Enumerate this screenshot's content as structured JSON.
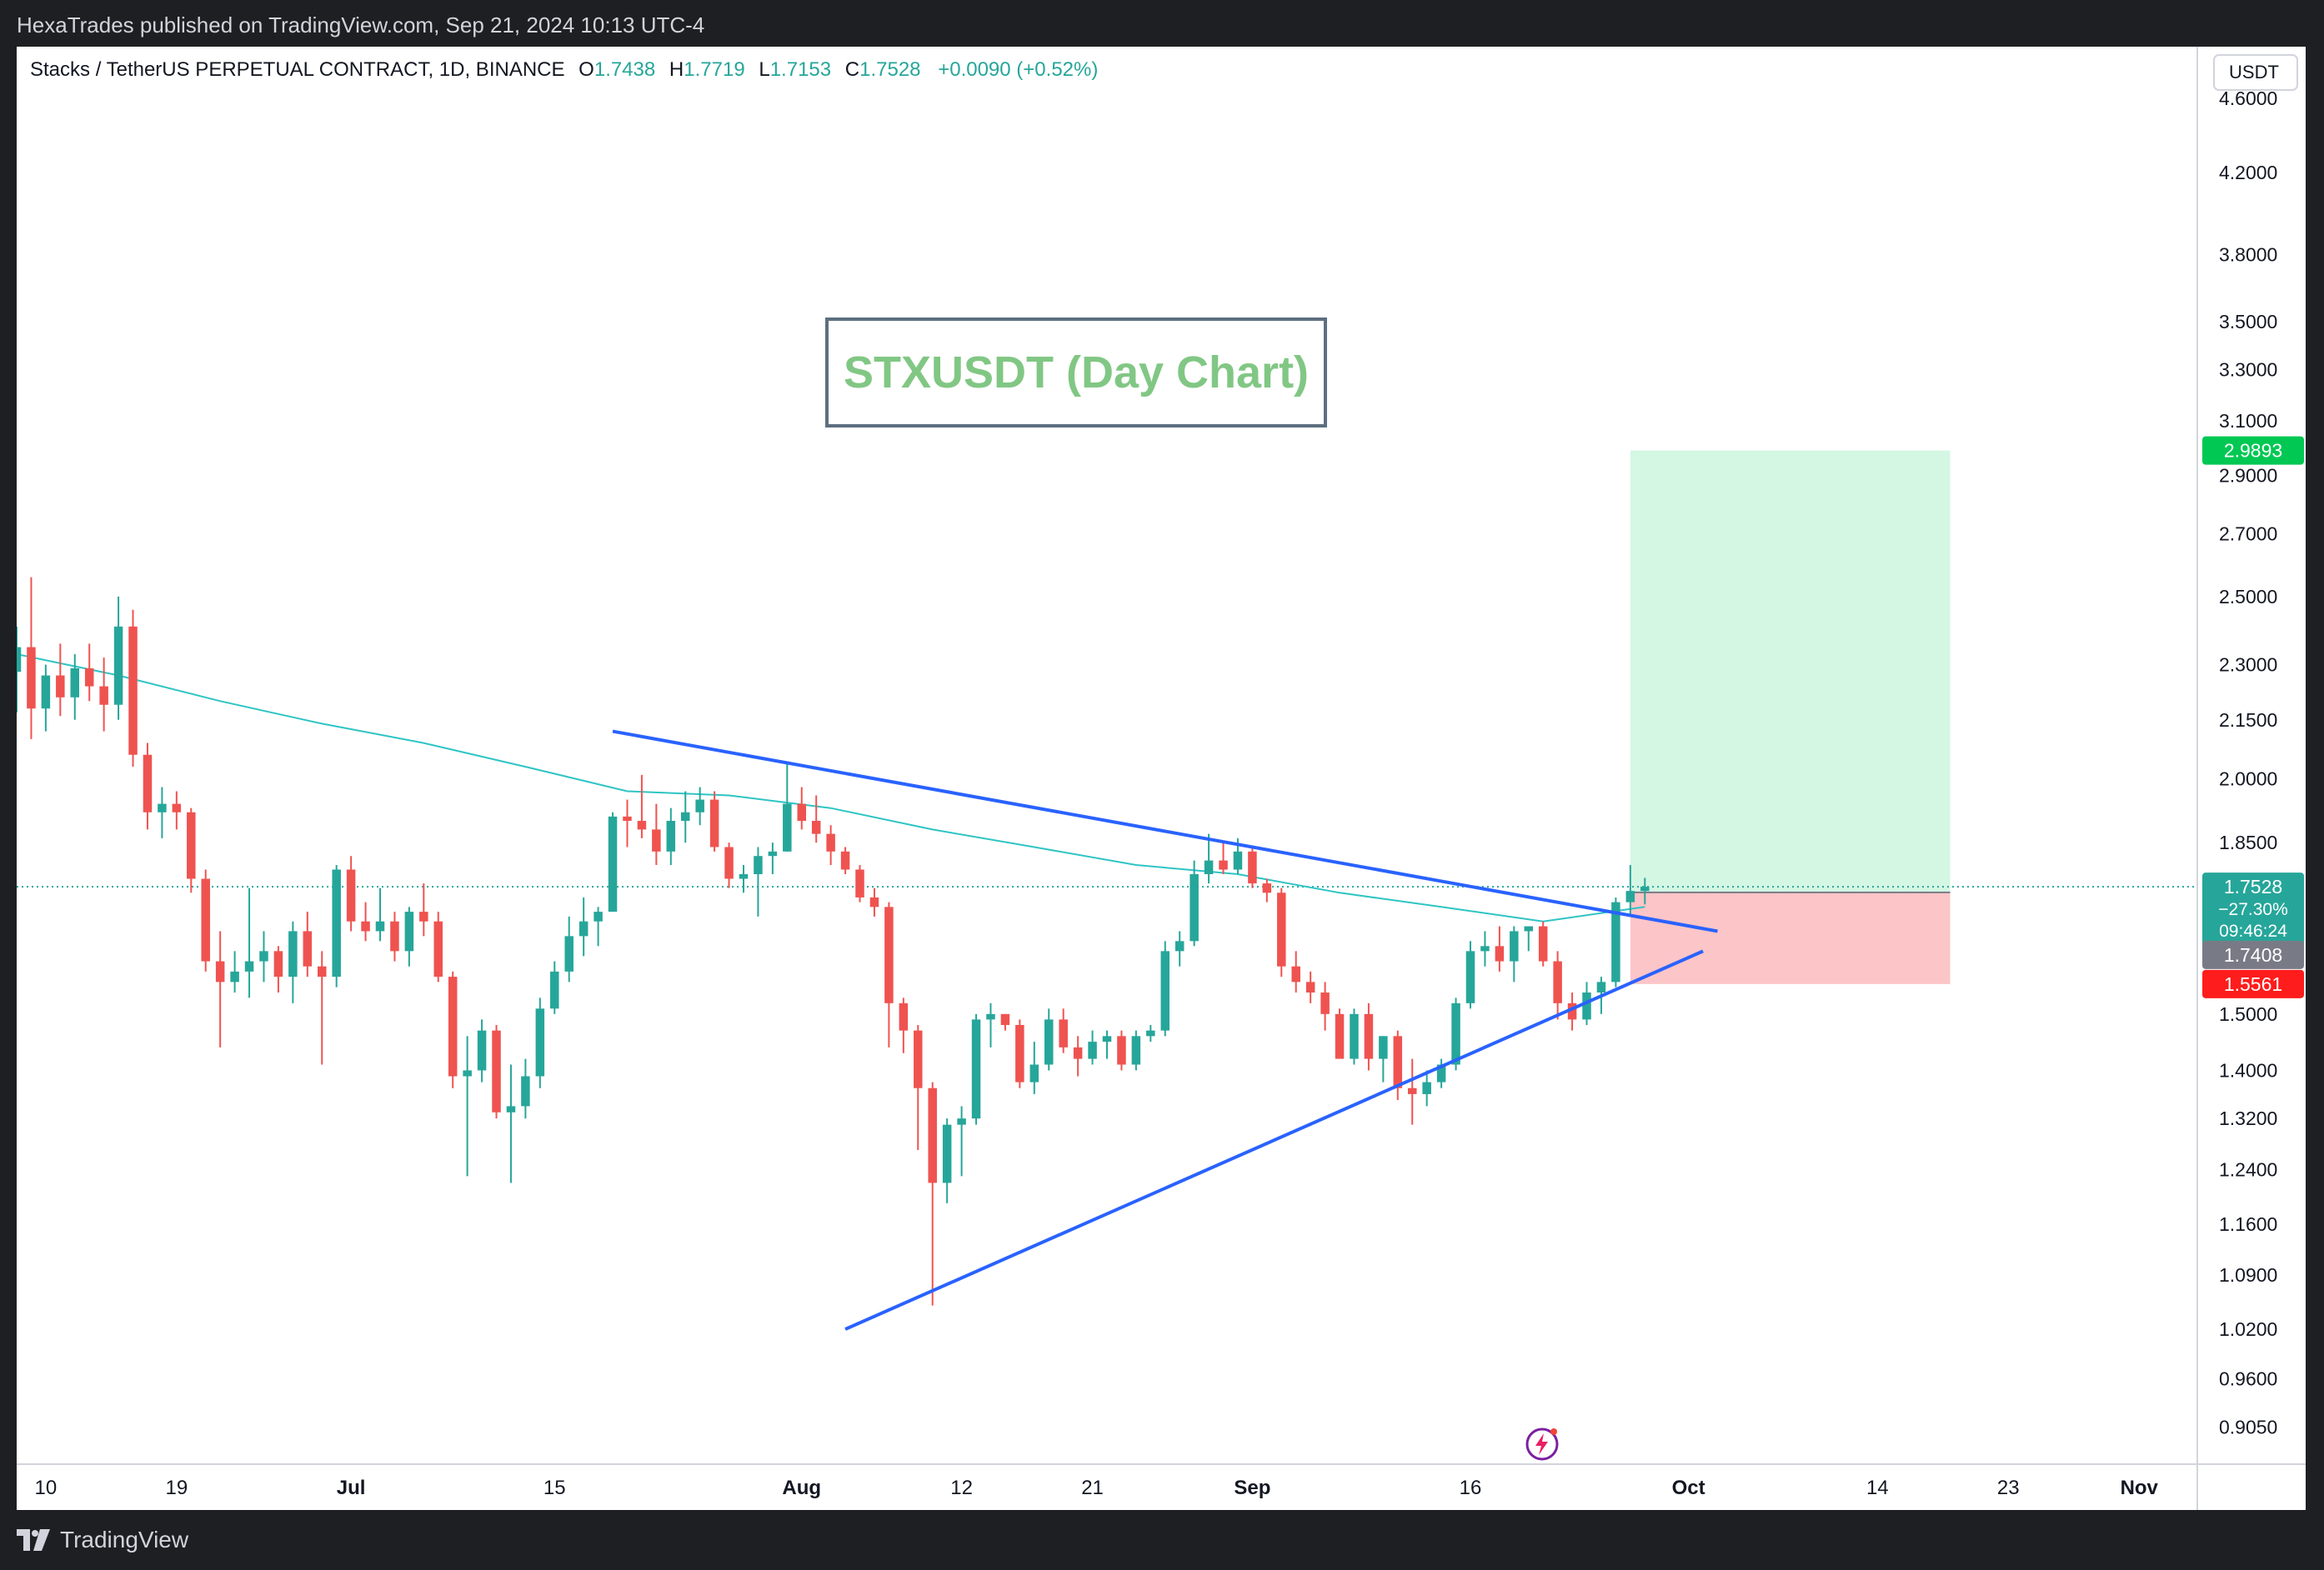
{
  "header": {
    "attribution": "HexaTrades published on TradingView.com, Sep 21, 2024 10:13 UTC-4"
  },
  "legend": {
    "symbol": "Stacks / TetherUS PERPETUAL CONTRACT, 1D, BINANCE",
    "open_label": "O",
    "open": "1.7438",
    "high_label": "H",
    "high": "1.7719",
    "low_label": "L",
    "low": "1.7153",
    "close_label": "C",
    "close": "1.7528",
    "change": "+0.0090 (+0.52%)"
  },
  "annotation": {
    "title": "STXUSDT (Day Chart)"
  },
  "price_axis": {
    "currency": "USDT",
    "ticks": [
      "4.6000",
      "4.2000",
      "3.8000",
      "3.5000",
      "3.3000",
      "3.1000",
      "2.9000",
      "2.7000",
      "2.5000",
      "2.3000",
      "2.1500",
      "2.0000",
      "1.8500",
      "1.5000",
      "1.4000",
      "1.3200",
      "1.2400",
      "1.1600",
      "1.0900",
      "1.0200",
      "0.9600",
      "0.9050"
    ],
    "badges": {
      "target": "2.9893",
      "last_price": "1.7528",
      "last_change": "−27.30%",
      "countdown": "09:46:24",
      "entry": "1.7408",
      "stop": "1.5561"
    }
  },
  "time_axis": {
    "labels": [
      "10",
      "19",
      "Jul",
      "15",
      "Aug",
      "12",
      "21",
      "Sep",
      "16",
      "Oct",
      "14",
      "23",
      "Nov"
    ]
  },
  "footer": {
    "brand": "TradingView"
  },
  "colors": {
    "up": "#26a69a",
    "down": "#ef5350",
    "ma": "#2ec4c4",
    "trendline": "#2962ff",
    "target_zone": "#d4f7e4",
    "stop_zone": "#fcc5c7",
    "badge_target": "#00c853",
    "badge_stop": "#ff1c1c",
    "badge_entry": "#787b86"
  },
  "chart_data": {
    "type": "candlestick",
    "title": "STXUSDT (Day Chart)",
    "symbol": "STXUSDT",
    "timeframe": "1D",
    "scale": "log",
    "ylim": [
      0.87,
      4.9
    ],
    "x_range": [
      "2024-06-08",
      "2024-11-05"
    ],
    "candles": [
      {
        "date": "2024-06-08",
        "o": 2.28,
        "h": 2.41,
        "l": 2.17,
        "c": 2.35
      },
      {
        "date": "2024-06-09",
        "o": 2.35,
        "h": 2.56,
        "l": 2.1,
        "c": 2.18
      },
      {
        "date": "2024-06-10",
        "o": 2.18,
        "h": 2.3,
        "l": 2.12,
        "c": 2.27
      },
      {
        "date": "2024-06-11",
        "o": 2.27,
        "h": 2.36,
        "l": 2.16,
        "c": 2.21
      },
      {
        "date": "2024-06-12",
        "o": 2.21,
        "h": 2.33,
        "l": 2.15,
        "c": 2.29
      },
      {
        "date": "2024-06-13",
        "o": 2.29,
        "h": 2.36,
        "l": 2.2,
        "c": 2.24
      },
      {
        "date": "2024-06-14",
        "o": 2.24,
        "h": 2.32,
        "l": 2.12,
        "c": 2.19
      },
      {
        "date": "2024-06-15",
        "o": 2.19,
        "h": 2.5,
        "l": 2.15,
        "c": 2.41
      },
      {
        "date": "2024-06-16",
        "o": 2.41,
        "h": 2.46,
        "l": 2.03,
        "c": 2.06
      },
      {
        "date": "2024-06-17",
        "o": 2.06,
        "h": 2.09,
        "l": 1.88,
        "c": 1.92
      },
      {
        "date": "2024-06-18",
        "o": 1.92,
        "h": 1.98,
        "l": 1.86,
        "c": 1.94
      },
      {
        "date": "2024-06-19",
        "o": 1.94,
        "h": 1.97,
        "l": 1.88,
        "c": 1.92
      },
      {
        "date": "2024-06-20",
        "o": 1.92,
        "h": 1.93,
        "l": 1.74,
        "c": 1.77
      },
      {
        "date": "2024-06-21",
        "o": 1.77,
        "h": 1.79,
        "l": 1.58,
        "c": 1.6
      },
      {
        "date": "2024-06-22",
        "o": 1.6,
        "h": 1.66,
        "l": 1.44,
        "c": 1.56
      },
      {
        "date": "2024-06-23",
        "o": 1.56,
        "h": 1.62,
        "l": 1.54,
        "c": 1.58
      },
      {
        "date": "2024-06-24",
        "o": 1.58,
        "h": 1.75,
        "l": 1.53,
        "c": 1.6
      },
      {
        "date": "2024-06-25",
        "o": 1.6,
        "h": 1.66,
        "l": 1.56,
        "c": 1.62
      },
      {
        "date": "2024-06-26",
        "o": 1.62,
        "h": 1.63,
        "l": 1.54,
        "c": 1.57
      },
      {
        "date": "2024-06-27",
        "o": 1.57,
        "h": 1.68,
        "l": 1.52,
        "c": 1.66
      },
      {
        "date": "2024-06-28",
        "o": 1.66,
        "h": 1.7,
        "l": 1.57,
        "c": 1.59
      },
      {
        "date": "2024-06-29",
        "o": 1.59,
        "h": 1.62,
        "l": 1.41,
        "c": 1.57
      },
      {
        "date": "2024-06-30",
        "o": 1.57,
        "h": 1.8,
        "l": 1.55,
        "c": 1.79
      },
      {
        "date": "2024-07-01",
        "o": 1.79,
        "h": 1.82,
        "l": 1.66,
        "c": 1.68
      },
      {
        "date": "2024-07-02",
        "o": 1.68,
        "h": 1.72,
        "l": 1.64,
        "c": 1.66
      },
      {
        "date": "2024-07-03",
        "o": 1.66,
        "h": 1.75,
        "l": 1.64,
        "c": 1.68
      },
      {
        "date": "2024-07-04",
        "o": 1.68,
        "h": 1.7,
        "l": 1.6,
        "c": 1.62
      },
      {
        "date": "2024-07-05",
        "o": 1.62,
        "h": 1.71,
        "l": 1.59,
        "c": 1.7
      },
      {
        "date": "2024-07-06",
        "o": 1.7,
        "h": 1.76,
        "l": 1.65,
        "c": 1.68
      },
      {
        "date": "2024-07-07",
        "o": 1.68,
        "h": 1.7,
        "l": 1.56,
        "c": 1.57
      },
      {
        "date": "2024-07-08",
        "o": 1.57,
        "h": 1.58,
        "l": 1.37,
        "c": 1.39
      },
      {
        "date": "2024-07-09",
        "o": 1.39,
        "h": 1.46,
        "l": 1.23,
        "c": 1.4
      },
      {
        "date": "2024-07-10",
        "o": 1.4,
        "h": 1.49,
        "l": 1.38,
        "c": 1.47
      },
      {
        "date": "2024-07-11",
        "o": 1.47,
        "h": 1.48,
        "l": 1.32,
        "c": 1.33
      },
      {
        "date": "2024-07-12",
        "o": 1.33,
        "h": 1.41,
        "l": 1.22,
        "c": 1.34
      },
      {
        "date": "2024-07-13",
        "o": 1.34,
        "h": 1.42,
        "l": 1.32,
        "c": 1.39
      },
      {
        "date": "2024-07-14",
        "o": 1.39,
        "h": 1.53,
        "l": 1.37,
        "c": 1.51
      },
      {
        "date": "2024-07-15",
        "o": 1.51,
        "h": 1.6,
        "l": 1.5,
        "c": 1.58
      },
      {
        "date": "2024-07-16",
        "o": 1.58,
        "h": 1.69,
        "l": 1.56,
        "c": 1.65
      },
      {
        "date": "2024-07-17",
        "o": 1.65,
        "h": 1.73,
        "l": 1.61,
        "c": 1.68
      },
      {
        "date": "2024-07-18",
        "o": 1.68,
        "h": 1.71,
        "l": 1.63,
        "c": 1.7
      },
      {
        "date": "2024-07-19",
        "o": 1.7,
        "h": 1.92,
        "l": 1.7,
        "c": 1.91
      },
      {
        "date": "2024-07-20",
        "o": 1.91,
        "h": 1.95,
        "l": 1.84,
        "c": 1.9
      },
      {
        "date": "2024-07-21",
        "o": 1.9,
        "h": 2.01,
        "l": 1.86,
        "c": 1.88
      },
      {
        "date": "2024-07-22",
        "o": 1.88,
        "h": 1.94,
        "l": 1.8,
        "c": 1.83
      },
      {
        "date": "2024-07-23",
        "o": 1.83,
        "h": 1.93,
        "l": 1.8,
        "c": 1.9
      },
      {
        "date": "2024-07-24",
        "o": 1.9,
        "h": 1.97,
        "l": 1.85,
        "c": 1.92
      },
      {
        "date": "2024-07-25",
        "o": 1.92,
        "h": 1.98,
        "l": 1.89,
        "c": 1.95
      },
      {
        "date": "2024-07-26",
        "o": 1.95,
        "h": 1.97,
        "l": 1.83,
        "c": 1.84
      },
      {
        "date": "2024-07-27",
        "o": 1.84,
        "h": 1.85,
        "l": 1.75,
        "c": 1.77
      },
      {
        "date": "2024-07-28",
        "o": 1.77,
        "h": 1.8,
        "l": 1.74,
        "c": 1.78
      },
      {
        "date": "2024-07-29",
        "o": 1.78,
        "h": 1.84,
        "l": 1.69,
        "c": 1.82
      },
      {
        "date": "2024-07-30",
        "o": 1.82,
        "h": 1.85,
        "l": 1.78,
        "c": 1.83
      },
      {
        "date": "2024-07-31",
        "o": 1.83,
        "h": 2.04,
        "l": 1.83,
        "c": 1.94
      },
      {
        "date": "2024-08-01",
        "o": 1.94,
        "h": 1.98,
        "l": 1.88,
        "c": 1.9
      },
      {
        "date": "2024-08-02",
        "o": 1.9,
        "h": 1.96,
        "l": 1.85,
        "c": 1.87
      },
      {
        "date": "2024-08-03",
        "o": 1.87,
        "h": 1.89,
        "l": 1.8,
        "c": 1.83
      },
      {
        "date": "2024-08-04",
        "o": 1.83,
        "h": 1.84,
        "l": 1.78,
        "c": 1.79
      },
      {
        "date": "2024-08-05",
        "o": 1.79,
        "h": 1.8,
        "l": 1.72,
        "c": 1.73
      },
      {
        "date": "2024-08-06",
        "o": 1.73,
        "h": 1.75,
        "l": 1.69,
        "c": 1.71
      },
      {
        "date": "2024-08-07",
        "o": 1.71,
        "h": 1.72,
        "l": 1.44,
        "c": 1.52
      },
      {
        "date": "2024-08-08",
        "o": 1.52,
        "h": 1.53,
        "l": 1.43,
        "c": 1.47
      },
      {
        "date": "2024-08-09",
        "o": 1.47,
        "h": 1.48,
        "l": 1.27,
        "c": 1.37
      },
      {
        "date": "2024-08-10",
        "o": 1.37,
        "h": 1.38,
        "l": 1.05,
        "c": 1.22
      },
      {
        "date": "2024-08-11",
        "o": 1.22,
        "h": 1.32,
        "l": 1.19,
        "c": 1.31
      },
      {
        "date": "2024-08-12",
        "o": 1.31,
        "h": 1.34,
        "l": 1.23,
        "c": 1.32
      },
      {
        "date": "2024-08-13",
        "o": 1.32,
        "h": 1.5,
        "l": 1.31,
        "c": 1.49
      },
      {
        "date": "2024-08-14",
        "o": 1.49,
        "h": 1.52,
        "l": 1.44,
        "c": 1.5
      },
      {
        "date": "2024-08-15",
        "o": 1.5,
        "h": 1.5,
        "l": 1.47,
        "c": 1.48
      },
      {
        "date": "2024-08-16",
        "o": 1.48,
        "h": 1.49,
        "l": 1.37,
        "c": 1.38
      },
      {
        "date": "2024-08-17",
        "o": 1.38,
        "h": 1.45,
        "l": 1.36,
        "c": 1.41
      },
      {
        "date": "2024-08-18",
        "o": 1.41,
        "h": 1.51,
        "l": 1.4,
        "c": 1.49
      },
      {
        "date": "2024-08-19",
        "o": 1.49,
        "h": 1.51,
        "l": 1.43,
        "c": 1.44
      },
      {
        "date": "2024-08-20",
        "o": 1.44,
        "h": 1.46,
        "l": 1.39,
        "c": 1.42
      },
      {
        "date": "2024-08-21",
        "o": 1.42,
        "h": 1.47,
        "l": 1.41,
        "c": 1.45
      },
      {
        "date": "2024-08-22",
        "o": 1.45,
        "h": 1.47,
        "l": 1.42,
        "c": 1.46
      },
      {
        "date": "2024-08-23",
        "o": 1.46,
        "h": 1.47,
        "l": 1.4,
        "c": 1.41
      },
      {
        "date": "2024-08-24",
        "o": 1.41,
        "h": 1.47,
        "l": 1.4,
        "c": 1.46
      },
      {
        "date": "2024-08-25",
        "o": 1.46,
        "h": 1.48,
        "l": 1.45,
        "c": 1.47
      },
      {
        "date": "2024-08-26",
        "o": 1.47,
        "h": 1.64,
        "l": 1.46,
        "c": 1.62
      },
      {
        "date": "2024-08-27",
        "o": 1.62,
        "h": 1.66,
        "l": 1.59,
        "c": 1.64
      },
      {
        "date": "2024-08-28",
        "o": 1.64,
        "h": 1.81,
        "l": 1.63,
        "c": 1.78
      },
      {
        "date": "2024-08-29",
        "o": 1.78,
        "h": 1.87,
        "l": 1.76,
        "c": 1.81
      },
      {
        "date": "2024-08-30",
        "o": 1.81,
        "h": 1.85,
        "l": 1.78,
        "c": 1.79
      },
      {
        "date": "2024-08-31",
        "o": 1.79,
        "h": 1.86,
        "l": 1.78,
        "c": 1.83
      },
      {
        "date": "2024-09-01",
        "o": 1.83,
        "h": 1.84,
        "l": 1.75,
        "c": 1.76
      },
      {
        "date": "2024-09-02",
        "o": 1.76,
        "h": 1.77,
        "l": 1.72,
        "c": 1.74
      },
      {
        "date": "2024-09-03",
        "o": 1.74,
        "h": 1.75,
        "l": 1.57,
        "c": 1.59
      },
      {
        "date": "2024-09-04",
        "o": 1.59,
        "h": 1.62,
        "l": 1.54,
        "c": 1.56
      },
      {
        "date": "2024-09-05",
        "o": 1.56,
        "h": 1.58,
        "l": 1.52,
        "c": 1.54
      },
      {
        "date": "2024-09-06",
        "o": 1.54,
        "h": 1.56,
        "l": 1.47,
        "c": 1.5
      },
      {
        "date": "2024-09-07",
        "o": 1.5,
        "h": 1.51,
        "l": 1.43,
        "c": 1.42
      },
      {
        "date": "2024-09-08",
        "o": 1.42,
        "h": 1.51,
        "l": 1.41,
        "c": 1.5
      },
      {
        "date": "2024-09-09",
        "o": 1.5,
        "h": 1.52,
        "l": 1.4,
        "c": 1.42
      },
      {
        "date": "2024-09-10",
        "o": 1.42,
        "h": 1.46,
        "l": 1.38,
        "c": 1.46
      },
      {
        "date": "2024-09-11",
        "o": 1.46,
        "h": 1.47,
        "l": 1.35,
        "c": 1.37
      },
      {
        "date": "2024-09-12",
        "o": 1.37,
        "h": 1.42,
        "l": 1.31,
        "c": 1.36
      },
      {
        "date": "2024-09-13",
        "o": 1.36,
        "h": 1.4,
        "l": 1.34,
        "c": 1.38
      },
      {
        "date": "2024-09-14",
        "o": 1.38,
        "h": 1.42,
        "l": 1.37,
        "c": 1.41
      },
      {
        "date": "2024-09-15",
        "o": 1.41,
        "h": 1.53,
        "l": 1.4,
        "c": 1.52
      },
      {
        "date": "2024-09-16",
        "o": 1.52,
        "h": 1.64,
        "l": 1.51,
        "c": 1.62
      },
      {
        "date": "2024-09-17",
        "o": 1.62,
        "h": 1.66,
        "l": 1.59,
        "c": 1.63
      },
      {
        "date": "2024-09-18",
        "o": 1.63,
        "h": 1.67,
        "l": 1.58,
        "c": 1.6
      },
      {
        "date": "2024-09-19",
        "o": 1.6,
        "h": 1.67,
        "l": 1.56,
        "c": 1.66
      },
      {
        "date": "2024-09-20",
        "o": 1.66,
        "h": 1.67,
        "l": 1.62,
        "c": 1.67
      },
      {
        "date": "2024-09-21",
        "o": 1.67,
        "h": 1.68,
        "l": 1.59,
        "c": 1.6
      },
      {
        "date": "2024-09-22",
        "o": 1.6,
        "h": 1.62,
        "l": 1.49,
        "c": 1.52
      },
      {
        "date": "2024-09-23",
        "o": 1.52,
        "h": 1.54,
        "l": 1.47,
        "c": 1.49
      },
      {
        "date": "2024-09-24",
        "o": 1.49,
        "h": 1.56,
        "l": 1.48,
        "c": 1.54
      },
      {
        "date": "2024-09-25",
        "o": 1.54,
        "h": 1.57,
        "l": 1.5,
        "c": 1.56
      },
      {
        "date": "2024-09-26",
        "o": 1.56,
        "h": 1.73,
        "l": 1.55,
        "c": 1.72
      },
      {
        "date": "2024-09-27",
        "o": 1.72,
        "h": 1.8,
        "l": 1.69,
        "c": 1.7438
      },
      {
        "date": "2024-09-28",
        "o": 1.7438,
        "h": 1.7719,
        "l": 1.7153,
        "c": 1.7528
      }
    ],
    "moving_average": {
      "type": "ma",
      "points": [
        {
          "date": "2024-06-08",
          "v": 2.33
        },
        {
          "date": "2024-06-15",
          "v": 2.27
        },
        {
          "date": "2024-06-22",
          "v": 2.2
        },
        {
          "date": "2024-06-29",
          "v": 2.14
        },
        {
          "date": "2024-07-06",
          "v": 2.09
        },
        {
          "date": "2024-07-13",
          "v": 2.03
        },
        {
          "date": "2024-07-20",
          "v": 1.97
        },
        {
          "date": "2024-07-27",
          "v": 1.96
        },
        {
          "date": "2024-08-03",
          "v": 1.93
        },
        {
          "date": "2024-08-10",
          "v": 1.88
        },
        {
          "date": "2024-08-17",
          "v": 1.84
        },
        {
          "date": "2024-08-24",
          "v": 1.8
        },
        {
          "date": "2024-08-31",
          "v": 1.78
        },
        {
          "date": "2024-09-07",
          "v": 1.74
        },
        {
          "date": "2024-09-14",
          "v": 1.71
        },
        {
          "date": "2024-09-21",
          "v": 1.68
        },
        {
          "date": "2024-09-28",
          "v": 1.71
        }
      ]
    },
    "trendlines": [
      {
        "name": "resistance",
        "start": {
          "date": "2024-07-19",
          "v": 2.12
        },
        "end": {
          "date": "2024-10-03",
          "v": 1.66
        }
      },
      {
        "name": "support",
        "start": {
          "date": "2024-08-04",
          "v": 1.02
        },
        "end": {
          "date": "2024-10-02",
          "v": 1.62
        }
      }
    ],
    "position": {
      "type": "long",
      "entry": 1.7408,
      "target": 2.9893,
      "stop": 1.5561,
      "start_date": "2024-09-27",
      "end_date": "2024-10-19"
    },
    "last_price": 1.7528,
    "time_labels": [
      {
        "date": "2024-06-10",
        "label": "10"
      },
      {
        "date": "2024-06-19",
        "label": "19"
      },
      {
        "date": "2024-07-01",
        "label": "Jul"
      },
      {
        "date": "2024-07-15",
        "label": "15"
      },
      {
        "date": "2024-08-01",
        "label": "Aug"
      },
      {
        "date": "2024-08-12",
        "label": "12"
      },
      {
        "date": "2024-08-21",
        "label": "21"
      },
      {
        "date": "2024-09-01",
        "label": "Sep"
      },
      {
        "date": "2024-09-16",
        "label": "16"
      },
      {
        "date": "2024-10-01",
        "label": "Oct"
      },
      {
        "date": "2024-10-14",
        "label": "14"
      },
      {
        "date": "2024-10-23",
        "label": "23"
      },
      {
        "date": "2024-11-01",
        "label": "Nov"
      }
    ],
    "price_ticks": [
      4.6,
      4.2,
      3.8,
      3.5,
      3.3,
      3.1,
      2.9,
      2.7,
      2.5,
      2.3,
      2.15,
      2.0,
      1.85,
      1.5,
      1.4,
      1.32,
      1.24,
      1.16,
      1.09,
      1.02,
      0.96,
      0.905
    ]
  }
}
